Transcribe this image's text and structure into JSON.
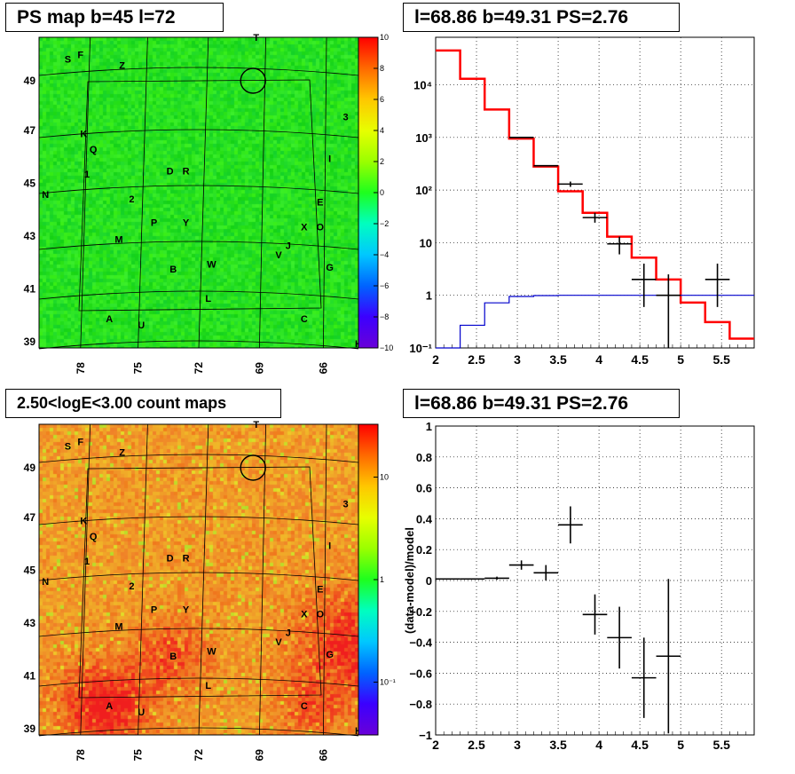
{
  "panels": {
    "tl_title": "PS map b=45 l=72",
    "tr_title": "l=68.86 b=49.31 PS=2.76",
    "bl_title": "2.50<logE<3.00 count maps",
    "br_title": "l=68.86 b=49.31 PS=2.76"
  },
  "colors": {
    "ps_map_base": "#1ee61e",
    "count_map_base": "#f2a12a",
    "data": "#000000",
    "model": "#ff0000",
    "background_model": "#0000cc"
  },
  "map_labels": {
    "x_ticks": [
      "78",
      "75",
      "72",
      "69",
      "66"
    ],
    "y_ticks": [
      "49",
      "47",
      "45",
      "43",
      "41",
      "39"
    ],
    "sources": [
      {
        "t": "S",
        "c": [
          0.09,
          0.07
        ]
      },
      {
        "t": "F",
        "c": [
          0.13,
          0.055
        ]
      },
      {
        "t": "Z",
        "c": [
          0.26,
          0.09
        ]
      },
      {
        "t": "T",
        "c": [
          0.68,
          0.0
        ]
      },
      {
        "t": "3",
        "c": [
          0.96,
          0.255
        ]
      },
      {
        "t": "K",
        "c": [
          0.14,
          0.31
        ]
      },
      {
        "t": "Q",
        "c": [
          0.17,
          0.36
        ]
      },
      {
        "t": "I",
        "c": [
          0.91,
          0.39
        ]
      },
      {
        "t": "1",
        "c": [
          0.15,
          0.44
        ]
      },
      {
        "t": "D",
        "c": [
          0.41,
          0.43
        ]
      },
      {
        "t": "R",
        "c": [
          0.46,
          0.43
        ]
      },
      {
        "t": "N",
        "c": [
          0.02,
          0.505
        ]
      },
      {
        "t": "2",
        "c": [
          0.29,
          0.52
        ]
      },
      {
        "t": "E",
        "c": [
          0.88,
          0.53
        ]
      },
      {
        "t": "P",
        "c": [
          0.36,
          0.595
        ]
      },
      {
        "t": "Y",
        "c": [
          0.46,
          0.595
        ]
      },
      {
        "t": "X",
        "c": [
          0.83,
          0.61
        ]
      },
      {
        "t": "O",
        "c": [
          0.88,
          0.61
        ]
      },
      {
        "t": "M",
        "c": [
          0.25,
          0.65
        ]
      },
      {
        "t": "J",
        "c": [
          0.78,
          0.67
        ]
      },
      {
        "t": "V",
        "c": [
          0.75,
          0.7
        ]
      },
      {
        "t": "G",
        "c": [
          0.91,
          0.74
        ]
      },
      {
        "t": "B",
        "c": [
          0.42,
          0.745
        ]
      },
      {
        "t": "W",
        "c": [
          0.54,
          0.73
        ]
      },
      {
        "t": "L",
        "c": [
          0.53,
          0.84
        ]
      },
      {
        "t": "A",
        "c": [
          0.22,
          0.905
        ]
      },
      {
        "t": "U",
        "c": [
          0.32,
          0.925
        ]
      },
      {
        "t": "C",
        "c": [
          0.83,
          0.905
        ]
      },
      {
        "t": "H",
        "c": [
          1.0,
          0.985
        ]
      }
    ]
  },
  "colorbar_ps": {
    "ticks": [
      "10",
      "8",
      "6",
      "4",
      "2",
      "0",
      "−2",
      "−4",
      "−6",
      "−8",
      "−10"
    ]
  },
  "colorbar_counts": {
    "ticks": [
      "10",
      "1",
      "10⁻¹"
    ]
  },
  "chart_data": [
    {
      "type": "line",
      "scale": "log",
      "xlim": [
        2,
        5.9
      ],
      "ylim": [
        0.1,
        80000
      ],
      "x_ticks": [
        "2",
        "2.5",
        "3",
        "3.5",
        "4",
        "4.5",
        "5",
        "5.5"
      ],
      "y_ticks": [
        "10⁻¹",
        "1",
        "10",
        "10²",
        "10³",
        "10⁴"
      ],
      "grid": true,
      "series": [
        {
          "style": "step",
          "color": "#ff0000",
          "edges": [
            2.0,
            2.3,
            2.6,
            2.9,
            3.2,
            3.5,
            3.8,
            4.1,
            4.4,
            4.7,
            5.0,
            5.3,
            5.6,
            5.9
          ],
          "values": [
            45000,
            13000,
            3400,
            950,
            280,
            95,
            37,
            13,
            5.2,
            2.0,
            0.73,
            0.31,
            0.15
          ]
        },
        {
          "style": "step",
          "color": "#0000cc",
          "edges": [
            2.0,
            2.3,
            2.6,
            2.9,
            3.2,
            3.5,
            5.9
          ],
          "values": [
            0.02,
            0.27,
            0.72,
            0.95,
            0.99,
            1.0
          ]
        },
        {
          "style": "errorbars",
          "color": "#000000",
          "points": [
            {
              "x": 3.05,
              "y": 1000,
              "xerr": 0.15,
              "lo": 1000,
              "hi": 1000
            },
            {
              "x": 3.35,
              "y": 290,
              "xerr": 0.15,
              "lo": 290,
              "hi": 290
            },
            {
              "x": 3.65,
              "y": 130,
              "xerr": 0.15,
              "lo": 115,
              "hi": 145
            },
            {
              "x": 3.95,
              "y": 30,
              "xerr": 0.15,
              "lo": 24,
              "hi": 37
            },
            {
              "x": 4.25,
              "y": 9.5,
              "xerr": 0.15,
              "lo": 6,
              "hi": 13
            },
            {
              "x": 4.55,
              "y": 2,
              "xerr": 0.15,
              "lo": 0.6,
              "hi": 4
            },
            {
              "x": 4.85,
              "y": 1,
              "xerr": 0.15,
              "lo": 0.1,
              "hi": 2.5
            },
            {
              "x": 5.45,
              "y": 2,
              "xerr": 0.15,
              "lo": 0.6,
              "hi": 4
            }
          ]
        }
      ]
    },
    {
      "type": "scatter",
      "xlim": [
        2,
        5.9
      ],
      "ylim": [
        -1,
        1
      ],
      "x_ticks": [
        "2",
        "2.5",
        "3",
        "3.5",
        "4",
        "4.5",
        "5",
        "5.5"
      ],
      "y_ticks": [
        "1",
        "0.8",
        "0.6",
        "0.4",
        "0.2",
        "0",
        "−0.2",
        "−0.4",
        "−0.6",
        "−0.8",
        "−1"
      ],
      "ylabel": "(data-model)/model",
      "grid": true,
      "points": [
        {
          "x": 2.15,
          "y": 0.01,
          "xerr": 0.15,
          "yerr": 0.003
        },
        {
          "x": 2.45,
          "y": 0.01,
          "xerr": 0.15,
          "yerr": 0.004
        },
        {
          "x": 2.75,
          "y": 0.015,
          "xerr": 0.15,
          "yerr": 0.01
        },
        {
          "x": 3.05,
          "y": 0.1,
          "xerr": 0.15,
          "yerr": 0.03
        },
        {
          "x": 3.35,
          "y": 0.05,
          "xerr": 0.15,
          "yerr": 0.05
        },
        {
          "x": 3.65,
          "y": 0.36,
          "xerr": 0.15,
          "yerr": 0.12
        },
        {
          "x": 3.95,
          "y": -0.22,
          "xerr": 0.15,
          "yerr": 0.13
        },
        {
          "x": 4.25,
          "y": -0.37,
          "xerr": 0.15,
          "yerr": 0.2
        },
        {
          "x": 4.55,
          "y": -0.63,
          "xerr": 0.15,
          "yerr": 0.26
        },
        {
          "x": 4.85,
          "y": -0.49,
          "xerr": 0.15,
          "yerr": 0.5
        }
      ]
    }
  ]
}
